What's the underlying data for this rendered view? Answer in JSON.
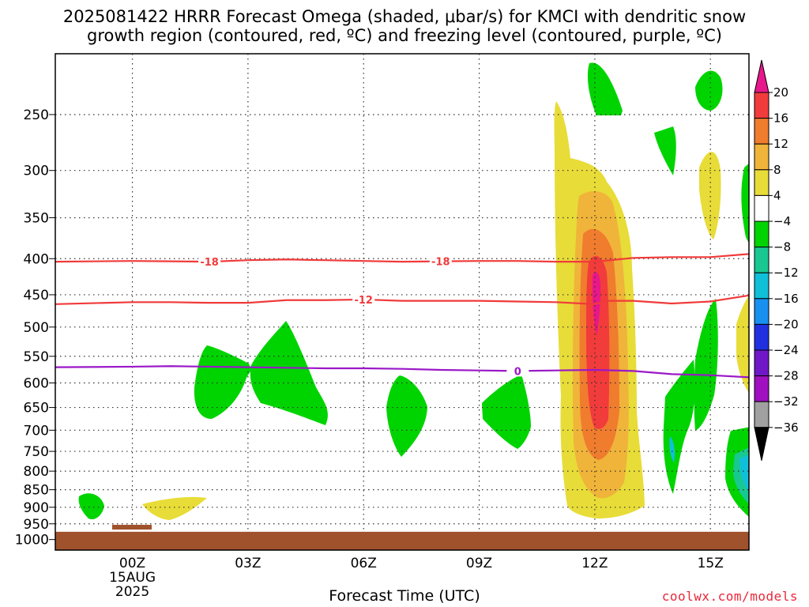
{
  "title_line1": "2025081422 HRRR Forecast Omega (shaded, μbar/s) for KMCI with dendritic snow",
  "title_line2": "growth region (contoured, red, ºC) and freezing level (contoured, purple, ºC)",
  "credit": "coolwx.com/models",
  "chart_data": {
    "type": "time-height cross section",
    "xlabel": "Forecast Time (UTC)",
    "x_ticks": [
      {
        "label": "00Z",
        "hour": 0,
        "date_lines": [
          "15AUG",
          "2025"
        ]
      },
      {
        "label": "03Z",
        "hour": 3
      },
      {
        "label": "06Z",
        "hour": 6
      },
      {
        "label": "09Z",
        "hour": 9
      },
      {
        "label": "12Z",
        "hour": 12
      },
      {
        "label": "15Z",
        "hour": 15
      }
    ],
    "x_range_hours": [
      -2,
      16
    ],
    "y_axis": "pressure (mb), log scale, reversed",
    "y_ticks": [
      250,
      300,
      350,
      400,
      450,
      500,
      550,
      600,
      650,
      700,
      750,
      800,
      850,
      900,
      950,
      1000
    ],
    "y_range": [
      205,
      1035
    ],
    "grid": true,
    "colorbar": {
      "labels": [
        "20",
        "16",
        "12",
        "8",
        "4",
        "−4",
        "−8",
        "−12",
        "−16",
        "−20",
        "−24",
        "−28",
        "−32",
        "−36"
      ],
      "colors": [
        "#e8178b",
        "#f23b3b",
        "#f07c2e",
        "#f0b43a",
        "#e8dc38",
        "#ffffff",
        "#00d400",
        "#18c890",
        "#10c0d8",
        "#1890f0",
        "#2030e0",
        "#7018c8",
        "#a010c0",
        "#a0a0a0",
        "#000000"
      ]
    },
    "contours": [
      {
        "name": "-18",
        "color": "#f03a3a",
        "points": [
          [
            -2,
            404
          ],
          [
            0,
            403
          ],
          [
            1,
            403.5
          ],
          [
            2,
            404
          ],
          [
            3,
            402
          ],
          [
            4,
            401
          ],
          [
            5,
            402
          ],
          [
            6,
            403
          ],
          [
            7,
            404
          ],
          [
            8,
            403.5
          ],
          [
            9,
            403
          ],
          [
            10,
            403
          ],
          [
            11,
            404
          ],
          [
            12,
            404
          ],
          [
            13,
            399
          ],
          [
            14,
            398
          ],
          [
            15,
            398
          ],
          [
            16,
            394
          ]
        ],
        "label_hours": [
          2,
          8
        ]
      },
      {
        "name": "-12",
        "color": "#f03a3a",
        "points": [
          [
            -2,
            464
          ],
          [
            0,
            461
          ],
          [
            1,
            461
          ],
          [
            2,
            462
          ],
          [
            3,
            462
          ],
          [
            4,
            458
          ],
          [
            5,
            458
          ],
          [
            6,
            457
          ],
          [
            7,
            459
          ],
          [
            8,
            459
          ],
          [
            9,
            459
          ],
          [
            10,
            460
          ],
          [
            11,
            461
          ],
          [
            12,
            464
          ],
          [
            12.3,
            459
          ],
          [
            13,
            459
          ],
          [
            14,
            463
          ],
          [
            15,
            460
          ],
          [
            16,
            451
          ]
        ],
        "label_hours": [
          6
        ]
      },
      {
        "name": "0",
        "color": "#9b18c8",
        "points": [
          [
            -2,
            570
          ],
          [
            0,
            569
          ],
          [
            1,
            568
          ],
          [
            2,
            569
          ],
          [
            3,
            570
          ],
          [
            4,
            571
          ],
          [
            5,
            572
          ],
          [
            6,
            572
          ],
          [
            7,
            573
          ],
          [
            8,
            575
          ],
          [
            9,
            576
          ],
          [
            10,
            577
          ],
          [
            11,
            576
          ],
          [
            12,
            575
          ],
          [
            13,
            577
          ],
          [
            14,
            583
          ],
          [
            15,
            585
          ],
          [
            16,
            589
          ]
        ],
        "label_hours": [
          10
        ]
      }
    ],
    "ground_pressure": 975
  }
}
